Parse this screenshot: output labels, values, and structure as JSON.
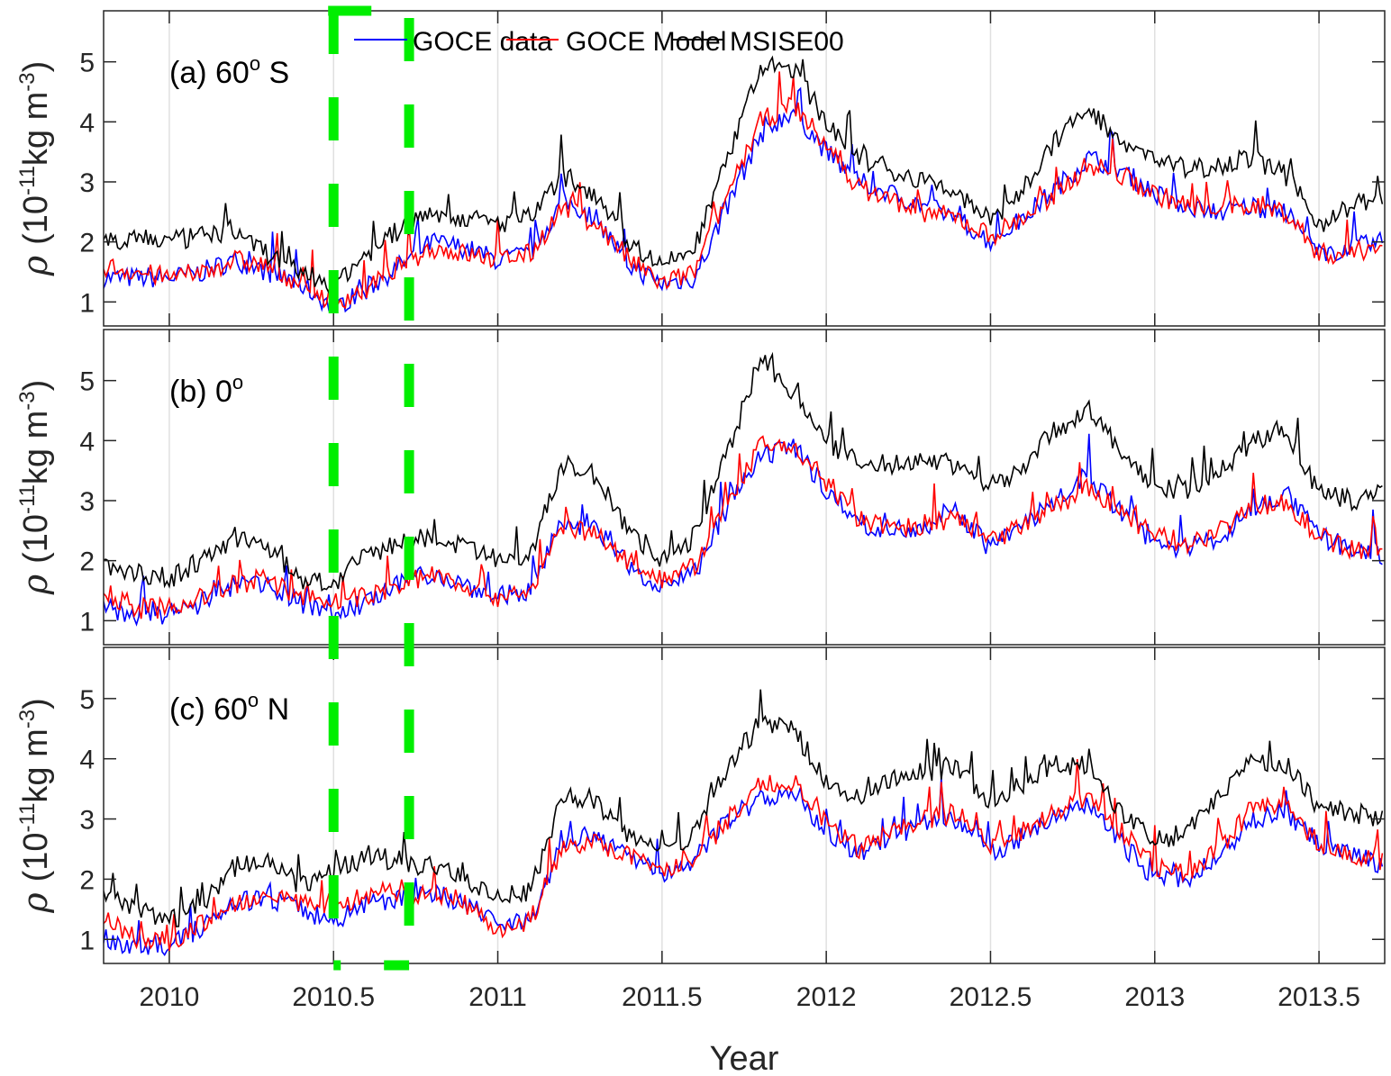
{
  "chart_data": {
    "type": "line",
    "xlabel": "Year",
    "ylabel": "ρ (10^-11 kg m^-3)",
    "ylabel_parts": {
      "rho": "ρ",
      "open": "(10",
      "exp": "-11",
      "unit": "kg m",
      "exp2": "-3",
      "close": ")"
    },
    "xlim": [
      2009.8,
      2013.7
    ],
    "ylim": [
      0.6,
      5.85
    ],
    "x_ticks": [
      2010,
      2010.5,
      2011,
      2011.5,
      2012,
      2012.5,
      2013,
      2013.5
    ],
    "x_tick_labels": [
      "2010",
      "2010.5",
      "2011",
      "2011.5",
      "2012",
      "2012.5",
      "2013",
      "2013.5"
    ],
    "y_ticks": [
      1,
      2,
      3,
      4,
      5
    ],
    "y_tick_labels": [
      "1",
      "2",
      "3",
      "4",
      "5"
    ],
    "grid": "x-major",
    "legend": {
      "placement": "top",
      "entries": [
        {
          "name": "GOCE data",
          "color": "#0000ff"
        },
        {
          "name": "GOCE Model",
          "color": "#ff0000"
        },
        {
          "name": "MSISE00",
          "color": "#000000"
        }
      ]
    },
    "highlight": {
      "description": "green dashed rectangle",
      "x_range": [
        2010.5,
        2010.73
      ],
      "color": "#00ee00"
    },
    "x": [
      2009.8,
      2009.9,
      2010.0,
      2010.1,
      2010.2,
      2010.3,
      2010.4,
      2010.5,
      2010.6,
      2010.7,
      2010.8,
      2010.9,
      2011.0,
      2011.1,
      2011.2,
      2011.3,
      2011.4,
      2011.5,
      2011.6,
      2011.7,
      2011.8,
      2011.9,
      2012.0,
      2012.1,
      2012.2,
      2012.3,
      2012.4,
      2012.5,
      2012.6,
      2012.7,
      2012.8,
      2012.9,
      2013.0,
      2013.1,
      2013.2,
      2013.3,
      2013.4,
      2013.5,
      2013.6,
      2013.7
    ],
    "panels": [
      {
        "label_prefix": "(a) 60",
        "label_sup": "o",
        "label_suffix": " S",
        "series": [
          {
            "name": "GOCE data",
            "color": "#0000ff",
            "values": [
              1.4,
              1.4,
              1.4,
              1.5,
              1.7,
              1.5,
              1.3,
              0.9,
              1.2,
              1.6,
              2.0,
              1.9,
              1.7,
              1.8,
              2.7,
              2.4,
              1.6,
              1.3,
              1.4,
              2.6,
              3.8,
              4.2,
              3.5,
              3.0,
              2.8,
              2.6,
              2.4,
              2.0,
              2.4,
              2.9,
              3.4,
              3.2,
              2.8,
              2.6,
              2.5,
              2.6,
              2.5,
              1.8,
              1.9,
              2.0
            ]
          },
          {
            "name": "GOCE Model",
            "color": "#ff0000",
            "values": [
              1.6,
              1.5,
              1.4,
              1.5,
              1.7,
              1.6,
              1.3,
              1.0,
              1.2,
              1.6,
              1.9,
              1.8,
              1.7,
              1.8,
              2.6,
              2.3,
              1.7,
              1.3,
              1.5,
              2.8,
              4.0,
              4.3,
              3.6,
              2.9,
              2.7,
              2.5,
              2.4,
              2.1,
              2.4,
              2.8,
              3.3,
              3.1,
              2.8,
              2.6,
              2.6,
              2.6,
              2.5,
              1.8,
              1.8,
              2.0
            ]
          },
          {
            "name": "MSISE00",
            "color": "#000000",
            "values": [
              2.0,
              2.1,
              2.0,
              2.1,
              2.2,
              1.8,
              1.5,
              1.3,
              1.8,
              2.2,
              2.5,
              2.4,
              2.3,
              2.4,
              3.1,
              2.8,
              2.0,
              1.6,
              1.9,
              3.4,
              4.9,
              4.9,
              4.0,
              3.4,
              3.2,
              3.0,
              2.8,
              2.3,
              2.9,
              3.7,
              4.2,
              3.7,
              3.4,
              3.2,
              3.3,
              3.4,
              3.1,
              2.3,
              2.6,
              2.8
            ]
          }
        ]
      },
      {
        "label_prefix": "(b) 0",
        "label_sup": "o",
        "label_suffix": "",
        "series": [
          {
            "name": "GOCE data",
            "color": "#0000ff",
            "values": [
              1.2,
              1.1,
              1.1,
              1.3,
              1.6,
              1.6,
              1.3,
              1.1,
              1.3,
              1.6,
              1.8,
              1.6,
              1.4,
              1.5,
              2.7,
              2.5,
              1.9,
              1.6,
              1.8,
              2.9,
              3.7,
              3.9,
              3.2,
              2.6,
              2.5,
              2.6,
              2.8,
              2.2,
              2.6,
              3.0,
              3.4,
              2.8,
              2.3,
              2.2,
              2.4,
              2.9,
              3.1,
              2.4,
              2.2,
              2.1
            ]
          },
          {
            "name": "GOCE Model",
            "color": "#ff0000",
            "values": [
              1.5,
              1.2,
              1.2,
              1.4,
              1.6,
              1.7,
              1.4,
              1.3,
              1.4,
              1.6,
              1.8,
              1.6,
              1.4,
              1.5,
              2.6,
              2.4,
              2.0,
              1.7,
              1.9,
              3.0,
              3.9,
              3.9,
              3.3,
              2.7,
              2.5,
              2.6,
              2.7,
              2.3,
              2.6,
              2.9,
              3.2,
              2.8,
              2.4,
              2.3,
              2.5,
              2.9,
              3.0,
              2.4,
              2.2,
              2.2
            ]
          },
          {
            "name": "MSISE00",
            "color": "#000000",
            "values": [
              1.9,
              1.8,
              1.7,
              2.0,
              2.4,
              2.2,
              1.7,
              1.6,
              2.1,
              2.3,
              2.4,
              2.2,
              2.0,
              2.1,
              3.6,
              3.4,
              2.5,
              2.0,
              2.4,
              3.8,
              5.4,
              4.8,
              4.0,
              3.6,
              3.6,
              3.7,
              3.6,
              3.2,
              3.6,
              4.2,
              4.5,
              3.8,
              3.2,
              3.2,
              3.5,
              4.0,
              4.2,
              3.1,
              3.0,
              3.2
            ]
          }
        ]
      },
      {
        "label_prefix": "(c) 60",
        "label_sup": "o",
        "label_suffix": " N",
        "series": [
          {
            "name": "GOCE data",
            "color": "#0000ff",
            "values": [
              1.0,
              0.9,
              0.9,
              1.2,
              1.6,
              1.7,
              1.5,
              1.3,
              1.6,
              1.7,
              1.8,
              1.6,
              1.3,
              1.3,
              2.7,
              2.7,
              2.4,
              2.1,
              2.3,
              3.0,
              3.3,
              3.5,
              2.8,
              2.4,
              2.7,
              2.9,
              3.0,
              2.4,
              2.7,
              3.0,
              3.2,
              2.6,
              2.0,
              2.0,
              2.4,
              3.0,
              3.1,
              2.6,
              2.4,
              2.2
            ]
          },
          {
            "name": "GOCE Model",
            "color": "#ff0000",
            "values": [
              1.4,
              1.0,
              0.9,
              1.3,
              1.6,
              1.8,
              1.6,
              1.6,
              1.7,
              1.7,
              1.8,
              1.6,
              1.2,
              1.3,
              2.6,
              2.6,
              2.4,
              2.2,
              2.3,
              3.0,
              3.6,
              3.6,
              2.9,
              2.5,
              2.8,
              3.0,
              3.1,
              2.6,
              2.8,
              3.1,
              3.4,
              2.8,
              2.2,
              2.1,
              2.5,
              3.2,
              3.2,
              2.6,
              2.4,
              2.3
            ]
          },
          {
            "name": "MSISE00",
            "color": "#000000",
            "values": [
              1.7,
              1.5,
              1.3,
              1.6,
              2.2,
              2.3,
              1.9,
              2.1,
              2.4,
              2.3,
              2.2,
              2.0,
              1.7,
              1.8,
              3.4,
              3.3,
              2.7,
              2.4,
              2.8,
              3.9,
              4.6,
              4.5,
              3.6,
              3.3,
              3.7,
              3.8,
              3.8,
              3.3,
              3.6,
              3.9,
              3.9,
              3.1,
              2.6,
              2.8,
              3.4,
              4.0,
              3.9,
              3.2,
              3.1,
              3.0
            ]
          }
        ]
      }
    ]
  }
}
